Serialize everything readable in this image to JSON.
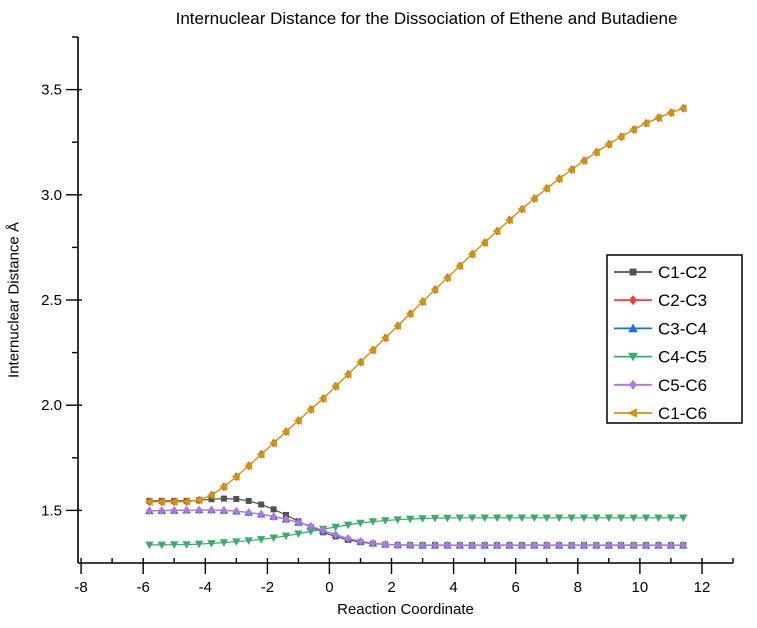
{
  "chart_data": {
    "type": "line",
    "title": "Internuclear Distance for the Dissociation of Ethene and Butadiene",
    "xlabel": "Reaction Coordinate",
    "ylabel": "Internuclear Distance Å",
    "xlim": [
      -8.1,
      13.0
    ],
    "ylim": [
      1.25,
      3.75
    ],
    "grid": false,
    "legend_position": "right-middle",
    "x_major_ticks": [
      -8,
      -6,
      -4,
      -2,
      0,
      2,
      4,
      6,
      8,
      10,
      12
    ],
    "x_tick_labels": [
      "-8",
      "-6",
      "-4",
      "-2",
      "0",
      "2",
      "4",
      "6",
      "8",
      "10",
      "12"
    ],
    "x_minor_ticks": [
      -7,
      -5,
      -3,
      -1,
      1,
      3,
      5,
      7,
      9,
      11,
      13
    ],
    "y_major_ticks": [
      1.5,
      2.0,
      2.5,
      3.0,
      3.5
    ],
    "y_tick_labels": [
      "1.5",
      "2.0",
      "2.5",
      "3.0",
      "3.5"
    ],
    "y_minor_ticks": [
      1.75,
      2.25,
      2.75,
      3.25,
      3.75
    ],
    "x": [
      -5.8,
      -5.4,
      -5.0,
      -4.6,
      -4.2,
      -3.8,
      -3.4,
      -3.0,
      -2.6,
      -2.2,
      -1.8,
      -1.4,
      -1.0,
      -0.6,
      -0.2,
      0.2,
      0.6,
      1.0,
      1.4,
      1.8,
      2.2,
      2.6,
      3.0,
      3.4,
      3.8,
      4.2,
      4.6,
      5.0,
      5.4,
      5.8,
      6.2,
      6.6,
      7.0,
      7.4,
      7.8,
      8.2,
      8.6,
      9.0,
      9.4,
      9.8,
      10.2,
      10.6,
      11.0,
      11.4
    ],
    "series": [
      {
        "name": "C1-C2",
        "color": "#515151",
        "marker": "square",
        "values": [
          1.545,
          1.545,
          1.545,
          1.545,
          1.548,
          1.553,
          1.556,
          1.554,
          1.545,
          1.528,
          1.505,
          1.478,
          1.448,
          1.42,
          1.396,
          1.376,
          1.36,
          1.349,
          1.342,
          1.338,
          1.336,
          1.335,
          1.335,
          1.335,
          1.335,
          1.335,
          1.335,
          1.335,
          1.335,
          1.335,
          1.335,
          1.335,
          1.335,
          1.335,
          1.335,
          1.335,
          1.335,
          1.335,
          1.335,
          1.335,
          1.335,
          1.335,
          1.335,
          1.335
        ]
      },
      {
        "name": "C2-C3",
        "color": "#F14040",
        "marker": "diamond",
        "values": [
          1.541,
          1.541,
          1.541,
          1.542,
          1.549,
          1.572,
          1.612,
          1.66,
          1.712,
          1.766,
          1.82,
          1.874,
          1.927,
          1.98,
          2.032,
          2.09,
          2.147,
          2.205,
          2.262,
          2.32,
          2.377,
          2.435,
          2.492,
          2.549,
          2.606,
          2.662,
          2.718,
          2.773,
          2.827,
          2.88,
          2.932,
          2.982,
          3.03,
          3.076,
          3.12,
          3.162,
          3.202,
          3.24,
          3.276,
          3.31,
          3.34,
          3.366,
          3.39,
          3.411
        ]
      },
      {
        "name": "C3-C4",
        "color": "#1A6FDF",
        "marker": "triangle-up",
        "values": [
          1.498,
          1.499,
          1.5,
          1.501,
          1.502,
          1.502,
          1.5,
          1.496,
          1.49,
          1.482,
          1.471,
          1.458,
          1.443,
          1.425,
          1.405,
          1.385,
          1.367,
          1.353,
          1.344,
          1.339,
          1.336,
          1.335,
          1.334,
          1.334,
          1.334,
          1.334,
          1.334,
          1.334,
          1.334,
          1.334,
          1.334,
          1.334,
          1.334,
          1.334,
          1.334,
          1.334,
          1.334,
          1.334,
          1.334,
          1.334,
          1.334,
          1.334,
          1.334,
          1.334
        ]
      },
      {
        "name": "C4-C5",
        "color": "#37AD6B",
        "marker": "triangle-down",
        "values": [
          1.336,
          1.336,
          1.337,
          1.338,
          1.34,
          1.343,
          1.347,
          1.351,
          1.356,
          1.362,
          1.37,
          1.379,
          1.389,
          1.4,
          1.411,
          1.421,
          1.431,
          1.44,
          1.447,
          1.452,
          1.456,
          1.459,
          1.461,
          1.463,
          1.464,
          1.465,
          1.465,
          1.465,
          1.465,
          1.465,
          1.465,
          1.465,
          1.465,
          1.465,
          1.465,
          1.465,
          1.465,
          1.465,
          1.465,
          1.465,
          1.465,
          1.465,
          1.465,
          1.465
        ]
      },
      {
        "name": "C5-C6",
        "color": "#B177DE",
        "marker": "diamond",
        "values": [
          1.498,
          1.499,
          1.5,
          1.501,
          1.502,
          1.502,
          1.5,
          1.496,
          1.49,
          1.482,
          1.471,
          1.458,
          1.443,
          1.425,
          1.405,
          1.385,
          1.367,
          1.353,
          1.344,
          1.339,
          1.336,
          1.335,
          1.334,
          1.334,
          1.334,
          1.334,
          1.334,
          1.334,
          1.334,
          1.334,
          1.334,
          1.334,
          1.334,
          1.334,
          1.334,
          1.334,
          1.334,
          1.334,
          1.334,
          1.334,
          1.334,
          1.334,
          1.334,
          1.334
        ]
      },
      {
        "name": "C1-C6",
        "color": "#CC9900",
        "marker": "triangle-left",
        "values": [
          1.541,
          1.541,
          1.541,
          1.542,
          1.549,
          1.572,
          1.612,
          1.66,
          1.712,
          1.766,
          1.82,
          1.874,
          1.927,
          1.98,
          2.032,
          2.09,
          2.147,
          2.205,
          2.262,
          2.32,
          2.377,
          2.435,
          2.492,
          2.549,
          2.606,
          2.662,
          2.718,
          2.773,
          2.827,
          2.88,
          2.932,
          2.982,
          3.03,
          3.076,
          3.12,
          3.162,
          3.202,
          3.24,
          3.276,
          3.31,
          3.34,
          3.366,
          3.39,
          3.411
        ]
      }
    ]
  }
}
